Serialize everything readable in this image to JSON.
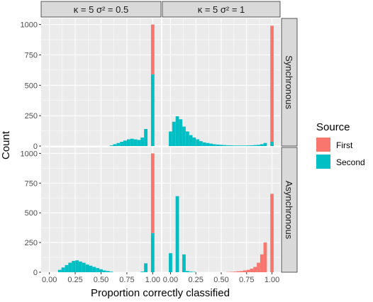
{
  "chart_data": {
    "type": "bar",
    "subtype": "faceted stacked histogram",
    "xlabel": "Proportion correctly classified",
    "ylabel": "Count",
    "xlim": [
      -0.08,
      1.08
    ],
    "ylim": [
      0,
      1050
    ],
    "x_ticks": [
      0.0,
      0.25,
      0.5,
      0.75,
      1.0
    ],
    "x_tick_labels": [
      "0.00",
      "0.25",
      "0.50",
      "0.75",
      "1.00"
    ],
    "y_ticks": [
      0,
      250,
      500,
      750,
      1000
    ],
    "y_tick_labels": [
      "0",
      "250",
      "500",
      "750",
      "1000"
    ],
    "bin_width": 0.0333,
    "grid": true,
    "column_strips": [
      "κ = 5 σ² = 0.5",
      "κ = 5 σ² = 1"
    ],
    "row_strips": [
      "Synchronous",
      "Asynchronous"
    ],
    "legend": {
      "title": "Source",
      "position": "right",
      "entries": [
        {
          "name": "First",
          "color": "#F8766D"
        },
        {
          "name": "Second",
          "color": "#00BFC4"
        }
      ]
    },
    "panels": [
      {
        "row": 0,
        "col": 0,
        "series": [
          {
            "name": "Second",
            "bins": [
              [
                0.6,
                5
              ],
              [
                0.633,
                15
              ],
              [
                0.667,
                25
              ],
              [
                0.7,
                35
              ],
              [
                0.733,
                45
              ],
              [
                0.767,
                55
              ],
              [
                0.8,
                60
              ],
              [
                0.833,
                55
              ],
              [
                0.867,
                50
              ],
              [
                0.9,
                70
              ],
              [
                0.933,
                140
              ],
              [
                1.0,
                590
              ]
            ]
          },
          {
            "name": "First",
            "bins": [
              [
                1.0,
                410
              ]
            ]
          }
        ]
      },
      {
        "row": 0,
        "col": 1,
        "series": [
          {
            "name": "Second",
            "bins": [
              [
                0.0,
                120
              ],
              [
                0.033,
                200
              ],
              [
                0.067,
                245
              ],
              [
                0.1,
                220
              ],
              [
                0.133,
                160
              ],
              [
                0.167,
                120
              ],
              [
                0.2,
                90
              ],
              [
                0.233,
                70
              ],
              [
                0.267,
                55
              ],
              [
                0.3,
                40
              ],
              [
                0.333,
                30
              ],
              [
                0.367,
                25
              ],
              [
                0.4,
                20
              ],
              [
                0.433,
                15
              ],
              [
                0.467,
                12
              ],
              [
                0.5,
                10
              ],
              [
                0.533,
                8
              ],
              [
                0.567,
                6
              ],
              [
                0.6,
                5
              ],
              [
                0.633,
                4
              ],
              [
                0.667,
                4
              ],
              [
                0.7,
                4
              ],
              [
                0.733,
                4
              ],
              [
                0.767,
                5
              ],
              [
                0.8,
                6
              ],
              [
                0.833,
                8
              ],
              [
                0.867,
                10
              ],
              [
                0.9,
                15
              ],
              [
                0.933,
                25
              ],
              [
                1.0,
                35
              ]
            ]
          },
          {
            "name": "First",
            "bins": [
              [
                1.0,
                955
              ]
            ]
          }
        ]
      },
      {
        "row": 1,
        "col": 0,
        "series": [
          {
            "name": "Second",
            "bins": [
              [
                0.1,
                20
              ],
              [
                0.133,
                40
              ],
              [
                0.167,
                60
              ],
              [
                0.2,
                80
              ],
              [
                0.233,
                95
              ],
              [
                0.267,
                100
              ],
              [
                0.3,
                90
              ],
              [
                0.333,
                80
              ],
              [
                0.367,
                65
              ],
              [
                0.4,
                55
              ],
              [
                0.433,
                45
              ],
              [
                0.467,
                35
              ],
              [
                0.5,
                25
              ],
              [
                0.533,
                15
              ],
              [
                0.567,
                10
              ],
              [
                0.6,
                5
              ],
              [
                0.9,
                5
              ],
              [
                0.933,
                75
              ],
              [
                1.0,
                330
              ]
            ]
          },
          {
            "name": "First",
            "bins": [
              [
                1.0,
                670
              ]
            ]
          }
        ]
      },
      {
        "row": 1,
        "col": 1,
        "series": [
          {
            "name": "Second",
            "bins": [
              [
                0.0,
                160
              ],
              [
                0.067,
                640
              ],
              [
                0.133,
                150
              ],
              [
                0.167,
                10
              ],
              [
                0.2,
                5
              ],
              [
                0.233,
                3
              ]
            ]
          },
          {
            "name": "First",
            "bins": [
              [
                0.567,
                2
              ],
              [
                0.6,
                3
              ],
              [
                0.633,
                5
              ],
              [
                0.667,
                8
              ],
              [
                0.7,
                10
              ],
              [
                0.733,
                15
              ],
              [
                0.767,
                20
              ],
              [
                0.8,
                30
              ],
              [
                0.833,
                45
              ],
              [
                0.867,
                80
              ],
              [
                0.9,
                150
              ],
              [
                0.933,
                250
              ],
              [
                1.0,
                660
              ]
            ]
          }
        ]
      }
    ]
  }
}
